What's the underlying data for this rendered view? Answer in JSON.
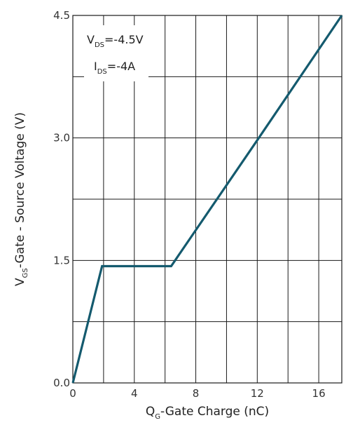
{
  "chart_data": {
    "type": "line",
    "x_axis": {
      "label_main": "Q",
      "label_sub": "G",
      "label_rest": "-Gate Charge (nC)",
      "range": [
        0,
        17.5
      ],
      "ticks": [
        0,
        4,
        8,
        12,
        16
      ],
      "tick_labels": [
        "0",
        "4",
        "8",
        "12",
        "16"
      ],
      "grid_step": 2
    },
    "y_axis": {
      "label_main": "V",
      "label_sub": "GS",
      "label_rest": "-Gate - Source Voltage (V)",
      "range": [
        0,
        4.5
      ],
      "ticks": [
        0,
        1.5,
        3.0,
        4.5
      ],
      "tick_labels": [
        "0.0",
        "1.5",
        "3.0",
        "4.5"
      ],
      "grid_step": 0.75
    },
    "grid": true,
    "series": [
      {
        "color": "#145a6e",
        "x": [
          0,
          1.9,
          6.4,
          12.1,
          17.5
        ],
        "y": [
          0,
          1.43,
          1.43,
          3.0,
          4.5
        ]
      }
    ],
    "annotations": {
      "line1_main": "V",
      "line1_sub": "DS",
      "line1_rest": "=-4.5V",
      "line2_main": "I",
      "line2_sub": "DS",
      "line2_rest": "=-4A",
      "placement": "top-left"
    },
    "colors": {
      "line": "#145a6e",
      "grid": "#1a1a1a"
    }
  }
}
